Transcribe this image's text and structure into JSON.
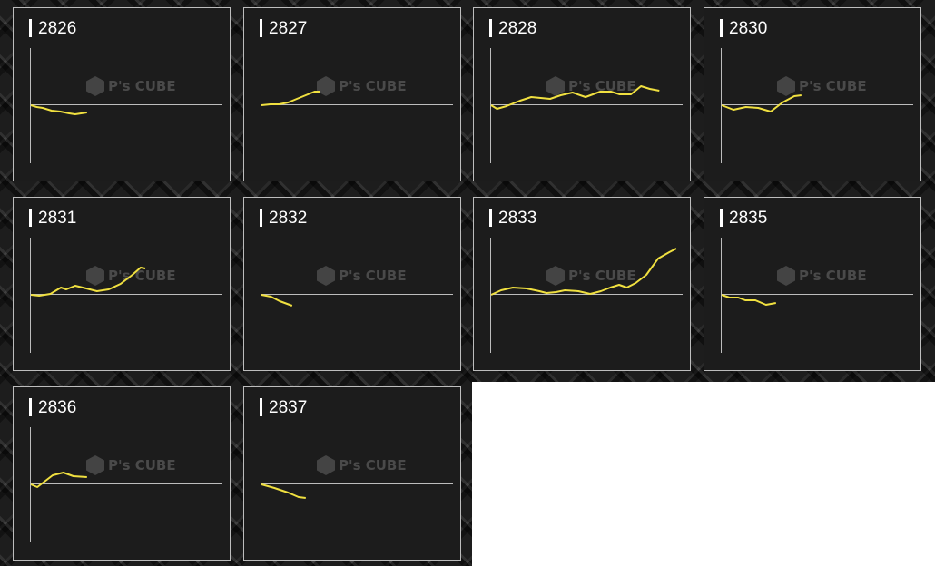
{
  "watermark": "P's CUBE",
  "colors": {
    "line": "#f0e040",
    "axis": "#bdbdbd",
    "panel": "#1c1c1c"
  },
  "chart_data": [
    {
      "type": "line",
      "title": "2826",
      "points": [
        [
          0,
          0
        ],
        [
          1,
          -2
        ],
        [
          2,
          -3
        ],
        [
          3.5,
          -6
        ],
        [
          5,
          -7
        ],
        [
          6.5,
          -9
        ],
        [
          7.5,
          -10
        ],
        [
          9.5,
          -8
        ]
      ]
    },
    {
      "type": "line",
      "title": "2827",
      "points": [
        [
          0,
          0
        ],
        [
          1.5,
          1
        ],
        [
          3,
          1
        ],
        [
          4.5,
          3
        ],
        [
          6,
          7
        ],
        [
          7.5,
          11
        ],
        [
          9,
          15
        ],
        [
          10,
          15
        ]
      ]
    },
    {
      "type": "line",
      "title": "2828",
      "points": [
        [
          0,
          0
        ],
        [
          1,
          -4
        ],
        [
          2.6,
          -1
        ],
        [
          4.9,
          5
        ],
        [
          6.8,
          9
        ],
        [
          10,
          7
        ],
        [
          11.8,
          11
        ],
        [
          13.8,
          14
        ],
        [
          16,
          9
        ],
        [
          18.5,
          15
        ],
        [
          20.3,
          15
        ],
        [
          21.8,
          12
        ],
        [
          23.7,
          12
        ],
        [
          25.4,
          21
        ],
        [
          26.9,
          18
        ],
        [
          28.5,
          16
        ]
      ]
    },
    {
      "type": "line",
      "title": "2830",
      "points": [
        [
          0,
          0
        ],
        [
          2,
          -5
        ],
        [
          4.1,
          -2
        ],
        [
          6.2,
          -3
        ],
        [
          8.3,
          -7
        ],
        [
          10.3,
          3
        ],
        [
          12.3,
          10
        ],
        [
          13.5,
          11
        ]
      ]
    },
    {
      "type": "line",
      "title": "2831",
      "points": [
        [
          0,
          0
        ],
        [
          1.4,
          -1
        ],
        [
          3.3,
          1
        ],
        [
          5.1,
          8
        ],
        [
          6,
          6
        ],
        [
          7.5,
          10
        ],
        [
          9.4,
          7
        ],
        [
          11.2,
          4
        ],
        [
          13.2,
          6
        ],
        [
          15.2,
          12
        ],
        [
          17.2,
          22
        ],
        [
          18.6,
          30
        ],
        [
          19.4,
          29
        ]
      ]
    },
    {
      "type": "line",
      "title": "2832",
      "points": [
        [
          0,
          0
        ],
        [
          1.6,
          -2
        ],
        [
          3.1,
          -7
        ],
        [
          5.2,
          -12
        ]
      ]
    },
    {
      "type": "line",
      "title": "2833",
      "points": [
        [
          0,
          0
        ],
        [
          1.7,
          5
        ],
        [
          3.7,
          8
        ],
        [
          6,
          7
        ],
        [
          8.2,
          4
        ],
        [
          9.4,
          2
        ],
        [
          11,
          3
        ],
        [
          12.5,
          5
        ],
        [
          14.8,
          4
        ],
        [
          16.8,
          1
        ],
        [
          18.6,
          4
        ],
        [
          20.2,
          8
        ],
        [
          21.7,
          11
        ],
        [
          23,
          8
        ],
        [
          24.5,
          13
        ],
        [
          26.3,
          22
        ],
        [
          28.3,
          40
        ],
        [
          30.2,
          47
        ],
        [
          31.4,
          51
        ]
      ]
    },
    {
      "type": "line",
      "title": "2835",
      "points": [
        [
          0,
          0
        ],
        [
          1.3,
          -3
        ],
        [
          2.8,
          -3
        ],
        [
          4,
          -6
        ],
        [
          5.7,
          -6
        ],
        [
          7.5,
          -11
        ],
        [
          9.2,
          -9
        ]
      ]
    },
    {
      "type": "line",
      "title": "2836",
      "points": [
        [
          0,
          0
        ],
        [
          1.1,
          -3
        ],
        [
          3.7,
          10
        ],
        [
          5.5,
          13
        ],
        [
          7.2,
          9
        ],
        [
          9.5,
          8
        ]
      ]
    },
    {
      "type": "line",
      "title": "2837",
      "points": [
        [
          0,
          0
        ],
        [
          2.2,
          -4
        ],
        [
          4.5,
          -9
        ],
        [
          6.3,
          -14
        ],
        [
          7.5,
          -15
        ]
      ]
    }
  ]
}
